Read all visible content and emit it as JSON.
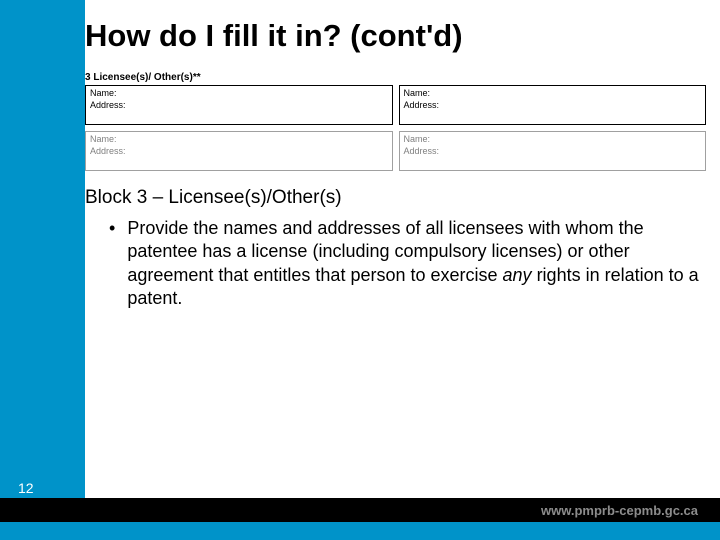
{
  "title": "How do I fill it in? (cont'd)",
  "form": {
    "heading": "3  Licensee(s)/ Other(s)**",
    "row1": {
      "left": {
        "name": "Name:",
        "address": "Address:"
      },
      "right": {
        "name": "Name:",
        "address": "Address:"
      }
    },
    "row2": {
      "left": {
        "name": "Name:",
        "address": "Address:"
      },
      "right": {
        "name": "Name:",
        "address": "Address:"
      }
    }
  },
  "block_label": "Block 3 – Licensee(s)/Other(s)",
  "bullet_pre": "Provide the names and addresses of all licensees with whom the patentee has a license (including compulsory licenses) or other agreement that entitles that person to exercise ",
  "bullet_em": "any",
  "bullet_post": " rights in relation to a patent.",
  "page_number": "12",
  "footer_url": "www.pmprb-cepmb.gc.ca",
  "colors": {
    "accent": "#0093c9",
    "text": "#000000",
    "faded": "#8c8c8c"
  }
}
